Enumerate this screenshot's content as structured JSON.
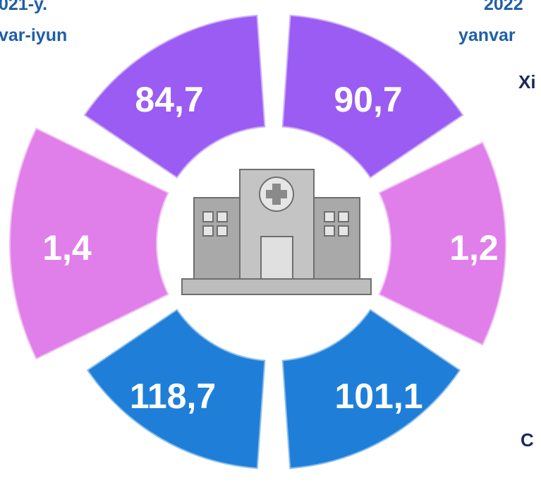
{
  "header_left": {
    "line1": "021-y.",
    "line2": "var-iyun"
  },
  "header_right": {
    "line1": "2022",
    "line2": "yanvar"
  },
  "side_labels": [
    "Xi",
    "C"
  ],
  "segments": [
    {
      "label": "84,7",
      "color": "#9a5cf2"
    },
    {
      "label": "90,7",
      "color": "#9a5cf2"
    },
    {
      "label": "1,4",
      "color": "#e07fe9"
    },
    {
      "label": "1,2",
      "color": "#e07fe9"
    },
    {
      "label": "118,7",
      "color": "#1f7fd8"
    },
    {
      "label": "101,1",
      "color": "#1f7fd8"
    }
  ]
}
